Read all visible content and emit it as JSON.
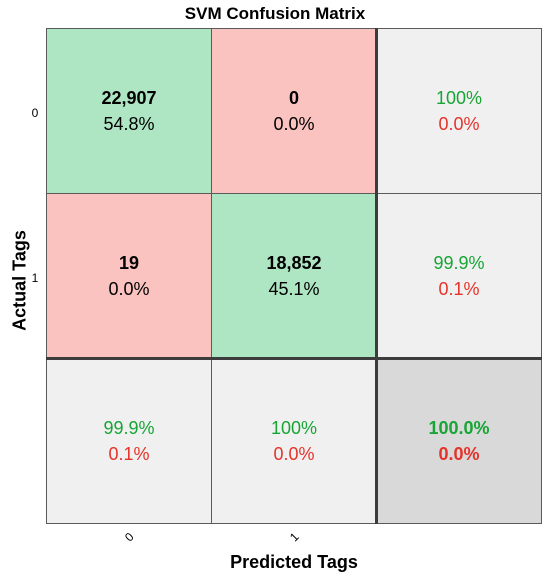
{
  "chart_data": {
    "type": "heatmap",
    "title": "SVM Confusion Matrix",
    "xlabel": "Predicted Tags",
    "ylabel": "Actual Tags",
    "row_ticks": [
      "0",
      "1"
    ],
    "col_ticks": [
      "0",
      "1"
    ],
    "cells": [
      [
        {
          "count": "22,907",
          "percent": "54.8%",
          "kind": "correct"
        },
        {
          "count": "0",
          "percent": "0.0%",
          "kind": "incorrect"
        }
      ],
      [
        {
          "count": "19",
          "percent": "0.0%",
          "kind": "incorrect"
        },
        {
          "count": "18,852",
          "percent": "45.1%",
          "kind": "correct"
        }
      ]
    ],
    "row_summary": [
      {
        "correct": "100%",
        "incorrect": "0.0%"
      },
      {
        "correct": "99.9%",
        "incorrect": "0.1%"
      }
    ],
    "col_summary": [
      {
        "correct": "99.9%",
        "incorrect": "0.1%"
      },
      {
        "correct": "100%",
        "incorrect": "0.0%"
      }
    ],
    "overall": {
      "correct": "100.0%",
      "incorrect": "0.0%"
    },
    "colors": {
      "correct_bg": "#aee6c3",
      "incorrect_bg": "#fbc3bf",
      "summary_bg": "#f0f0f0",
      "overall_bg": "#d9d9d9",
      "good_text": "#17a535",
      "bad_text": "#e5332a"
    }
  }
}
